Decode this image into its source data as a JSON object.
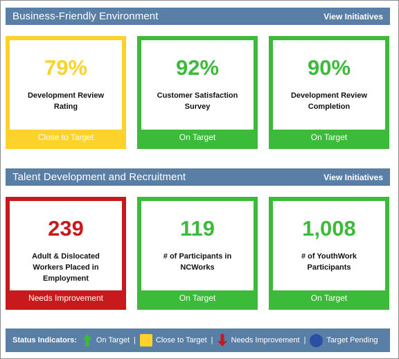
{
  "sections": [
    {
      "title": "Business-Friendly Environment",
      "link_label": "View Initiatives",
      "cards": [
        {
          "value": "79%",
          "label": "Development Review Rating",
          "status": "Close to Target",
          "color": "#fcd22b"
        },
        {
          "value": "92%",
          "label": "Customer Satisfaction Survey",
          "status": "On Target",
          "color": "#3cba3a"
        },
        {
          "value": "90%",
          "label": "Development Review Completion",
          "status": "On Target",
          "color": "#3cba3a"
        }
      ]
    },
    {
      "title": "Talent Development and Recruitment",
      "link_label": "View Initiatives",
      "cards": [
        {
          "value": "239",
          "label": "Adult & Dislocated Workers Placed in Employment",
          "status": "Needs Improvement",
          "color": "#c8191c"
        },
        {
          "value": "119",
          "label": "# of Participants in NCWorks",
          "status": "On Target",
          "color": "#3cba3a"
        },
        {
          "value": "1,008",
          "label": "# of YouthWork Participants",
          "status": "On Target",
          "color": "#3cba3a"
        }
      ]
    }
  ],
  "legend": {
    "title": "Status Indicators:",
    "items": [
      {
        "label": "On Target",
        "icon": "green-up-arrow-icon"
      },
      {
        "label": "Close to Target",
        "icon": "yellow-square-icon"
      },
      {
        "label": "Needs Improvement",
        "icon": "red-down-arrow-icon"
      },
      {
        "label": "Target Pending",
        "icon": "blue-circle-icon"
      }
    ],
    "separator": "|"
  }
}
